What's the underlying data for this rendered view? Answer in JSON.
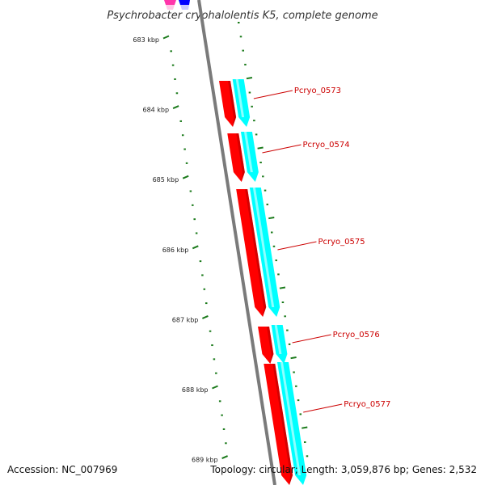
{
  "title": "Psychrobacter cryohalolentis K5, complete genome",
  "ticks": [
    {
      "label": "683 kbp"
    },
    {
      "label": "684 kbp"
    },
    {
      "label": "685 kbp"
    },
    {
      "label": "686 kbp"
    },
    {
      "label": "687 kbp"
    },
    {
      "label": "688 kbp"
    },
    {
      "label": "689 kbp"
    }
  ],
  "genes": [
    {
      "label": "Pcryo_0573"
    },
    {
      "label": "Pcryo_0574"
    },
    {
      "label": "Pcryo_0575"
    },
    {
      "label": "Pcryo_0576"
    },
    {
      "label": "Pcryo_0577"
    }
  ],
  "colors": {
    "cds": "#ff0000",
    "cds_dark": "#b00000",
    "gene": "#00ffff",
    "backbone": "#7a7a7a",
    "tick": "#1a7a1a",
    "label_line": "#cc0000",
    "other_feature_a": "#ff33aa",
    "other_feature_b": "#0000ff"
  },
  "footer": {
    "accession": "Accession: NC_007969",
    "summary": "Topology: circular; Length: 3,059,876 bp; Genes: 2,532"
  }
}
